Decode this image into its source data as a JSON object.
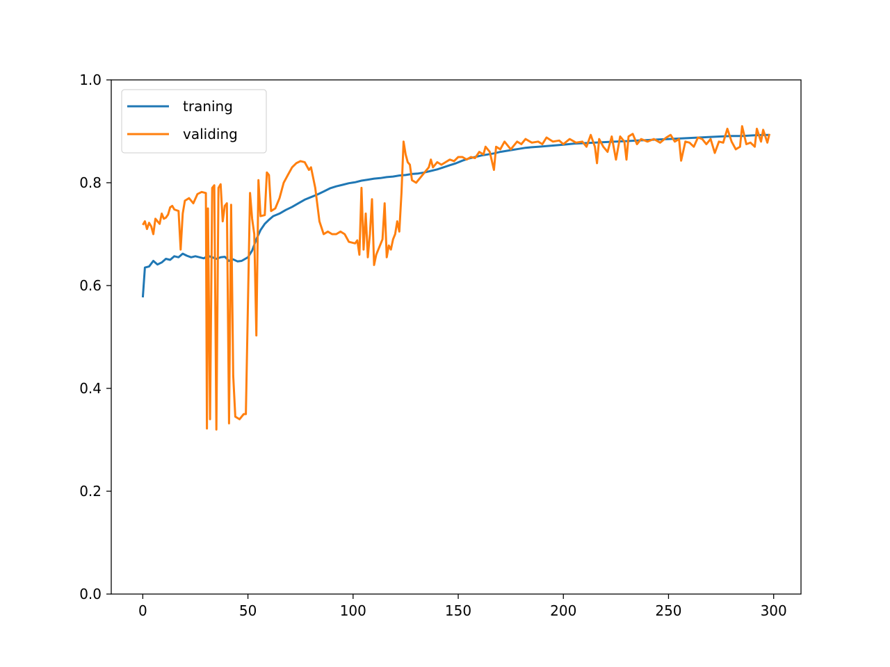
{
  "chart_data": {
    "type": "line",
    "title": "",
    "xlabel": "",
    "ylabel": "",
    "xlim": [
      -15,
      313
    ],
    "ylim": [
      0.0,
      1.0
    ],
    "x_ticks": [
      0,
      50,
      100,
      150,
      200,
      250,
      300
    ],
    "x_tick_labels": [
      "0",
      "50",
      "100",
      "150",
      "200",
      "250",
      "300"
    ],
    "y_ticks": [
      0.0,
      0.2,
      0.4,
      0.6,
      0.8,
      1.0
    ],
    "y_tick_labels": [
      "0.0",
      "0.2",
      "0.4",
      "0.6",
      "0.8",
      "1.0"
    ],
    "grid": false,
    "legend_position": "upper-left",
    "series": [
      {
        "name": "traning",
        "color": "#1f77b4",
        "points": [
          [
            0,
            0.577
          ],
          [
            1,
            0.635
          ],
          [
            3,
            0.637
          ],
          [
            5,
            0.648
          ],
          [
            7,
            0.641
          ],
          [
            9,
            0.645
          ],
          [
            11,
            0.652
          ],
          [
            13,
            0.65
          ],
          [
            15,
            0.657
          ],
          [
            17,
            0.655
          ],
          [
            19,
            0.662
          ],
          [
            21,
            0.658
          ],
          [
            23,
            0.655
          ],
          [
            25,
            0.657
          ],
          [
            27,
            0.655
          ],
          [
            29,
            0.653
          ],
          [
            31,
            0.658
          ],
          [
            33,
            0.655
          ],
          [
            35,
            0.652
          ],
          [
            37,
            0.655
          ],
          [
            39,
            0.656
          ],
          [
            41,
            0.648
          ],
          [
            43,
            0.651
          ],
          [
            45,
            0.647
          ],
          [
            47,
            0.648
          ],
          [
            50,
            0.655
          ],
          [
            52,
            0.668
          ],
          [
            54,
            0.69
          ],
          [
            56,
            0.708
          ],
          [
            58,
            0.72
          ],
          [
            60,
            0.728
          ],
          [
            62,
            0.735
          ],
          [
            65,
            0.74
          ],
          [
            68,
            0.747
          ],
          [
            71,
            0.753
          ],
          [
            74,
            0.76
          ],
          [
            77,
            0.767
          ],
          [
            80,
            0.772
          ],
          [
            83,
            0.777
          ],
          [
            86,
            0.783
          ],
          [
            89,
            0.789
          ],
          [
            92,
            0.793
          ],
          [
            95,
            0.796
          ],
          [
            98,
            0.799
          ],
          [
            101,
            0.801
          ],
          [
            104,
            0.804
          ],
          [
            107,
            0.806
          ],
          [
            110,
            0.808
          ],
          [
            113,
            0.809
          ],
          [
            116,
            0.811
          ],
          [
            119,
            0.812
          ],
          [
            122,
            0.814
          ],
          [
            125,
            0.815
          ],
          [
            128,
            0.817
          ],
          [
            131,
            0.818
          ],
          [
            134,
            0.82
          ],
          [
            137,
            0.823
          ],
          [
            140,
            0.826
          ],
          [
            143,
            0.83
          ],
          [
            146,
            0.834
          ],
          [
            149,
            0.838
          ],
          [
            152,
            0.843
          ],
          [
            155,
            0.847
          ],
          [
            158,
            0.85
          ],
          [
            161,
            0.853
          ],
          [
            164,
            0.855
          ],
          [
            167,
            0.857
          ],
          [
            170,
            0.86
          ],
          [
            173,
            0.862
          ],
          [
            176,
            0.864
          ],
          [
            179,
            0.866
          ],
          [
            182,
            0.868
          ],
          [
            185,
            0.869
          ],
          [
            188,
            0.87
          ],
          [
            191,
            0.871
          ],
          [
            194,
            0.872
          ],
          [
            197,
            0.873
          ],
          [
            200,
            0.874
          ],
          [
            205,
            0.876
          ],
          [
            210,
            0.877
          ],
          [
            215,
            0.878
          ],
          [
            220,
            0.879
          ],
          [
            225,
            0.88
          ],
          [
            230,
            0.881
          ],
          [
            235,
            0.882
          ],
          [
            240,
            0.883
          ],
          [
            245,
            0.884
          ],
          [
            250,
            0.885
          ],
          [
            255,
            0.886
          ],
          [
            260,
            0.887
          ],
          [
            265,
            0.888
          ],
          [
            270,
            0.889
          ],
          [
            275,
            0.89
          ],
          [
            280,
            0.891
          ],
          [
            285,
            0.891
          ],
          [
            290,
            0.892
          ],
          [
            295,
            0.893
          ],
          [
            298,
            0.893
          ]
        ]
      },
      {
        "name": "validing",
        "color": "#ff7f0e",
        "points": [
          [
            0,
            0.718
          ],
          [
            1,
            0.725
          ],
          [
            2,
            0.71
          ],
          [
            3,
            0.722
          ],
          [
            4,
            0.715
          ],
          [
            5,
            0.7
          ],
          [
            6,
            0.73
          ],
          [
            7,
            0.725
          ],
          [
            8,
            0.72
          ],
          [
            9,
            0.74
          ],
          [
            10,
            0.73
          ],
          [
            11,
            0.732
          ],
          [
            12,
            0.738
          ],
          [
            13,
            0.752
          ],
          [
            14,
            0.755
          ],
          [
            15,
            0.748
          ],
          [
            17,
            0.745
          ],
          [
            18,
            0.67
          ],
          [
            19,
            0.74
          ],
          [
            20,
            0.765
          ],
          [
            22,
            0.77
          ],
          [
            24,
            0.76
          ],
          [
            26,
            0.778
          ],
          [
            28,
            0.782
          ],
          [
            30,
            0.78
          ],
          [
            30.5,
            0.322
          ],
          [
            31,
            0.75
          ],
          [
            32,
            0.34
          ],
          [
            33,
            0.79
          ],
          [
            34,
            0.795
          ],
          [
            35,
            0.32
          ],
          [
            36,
            0.79
          ],
          [
            37,
            0.797
          ],
          [
            38,
            0.725
          ],
          [
            39,
            0.755
          ],
          [
            40,
            0.76
          ],
          [
            41,
            0.332
          ],
          [
            42,
            0.757
          ],
          [
            43,
            0.425
          ],
          [
            44,
            0.345
          ],
          [
            46,
            0.34
          ],
          [
            48,
            0.35
          ],
          [
            49,
            0.35
          ],
          [
            51,
            0.78
          ],
          [
            52,
            0.73
          ],
          [
            53,
            0.7
          ],
          [
            54,
            0.503
          ],
          [
            55,
            0.805
          ],
          [
            56,
            0.735
          ],
          [
            58,
            0.737
          ],
          [
            59,
            0.82
          ],
          [
            60,
            0.815
          ],
          [
            61,
            0.745
          ],
          [
            63,
            0.75
          ],
          [
            65,
            0.77
          ],
          [
            67,
            0.8
          ],
          [
            69,
            0.815
          ],
          [
            71,
            0.83
          ],
          [
            73,
            0.838
          ],
          [
            75,
            0.842
          ],
          [
            77,
            0.84
          ],
          [
            79,
            0.825
          ],
          [
            80,
            0.83
          ],
          [
            82,
            0.79
          ],
          [
            84,
            0.725
          ],
          [
            86,
            0.7
          ],
          [
            88,
            0.705
          ],
          [
            90,
            0.7
          ],
          [
            92,
            0.7
          ],
          [
            94,
            0.705
          ],
          [
            96,
            0.7
          ],
          [
            98,
            0.685
          ],
          [
            101,
            0.682
          ],
          [
            102,
            0.688
          ],
          [
            103,
            0.66
          ],
          [
            104,
            0.79
          ],
          [
            105,
            0.67
          ],
          [
            106,
            0.74
          ],
          [
            107,
            0.655
          ],
          [
            108,
            0.7
          ],
          [
            109,
            0.768
          ],
          [
            110,
            0.64
          ],
          [
            111,
            0.66
          ],
          [
            112,
            0.67
          ],
          [
            114,
            0.69
          ],
          [
            115,
            0.76
          ],
          [
            116,
            0.655
          ],
          [
            117,
            0.678
          ],
          [
            118,
            0.67
          ],
          [
            119,
            0.69
          ],
          [
            120,
            0.7
          ],
          [
            121,
            0.725
          ],
          [
            122,
            0.705
          ],
          [
            123,
            0.78
          ],
          [
            124,
            0.88
          ],
          [
            125,
            0.855
          ],
          [
            126,
            0.84
          ],
          [
            127,
            0.835
          ],
          [
            128,
            0.805
          ],
          [
            130,
            0.8
          ],
          [
            132,
            0.81
          ],
          [
            134,
            0.82
          ],
          [
            136,
            0.83
          ],
          [
            137,
            0.845
          ],
          [
            138,
            0.83
          ],
          [
            140,
            0.84
          ],
          [
            142,
            0.835
          ],
          [
            144,
            0.84
          ],
          [
            146,
            0.845
          ],
          [
            148,
            0.842
          ],
          [
            150,
            0.85
          ],
          [
            152,
            0.85
          ],
          [
            154,
            0.845
          ],
          [
            156,
            0.85
          ],
          [
            158,
            0.848
          ],
          [
            160,
            0.86
          ],
          [
            162,
            0.855
          ],
          [
            163,
            0.87
          ],
          [
            165,
            0.86
          ],
          [
            167,
            0.825
          ],
          [
            168,
            0.87
          ],
          [
            170,
            0.865
          ],
          [
            172,
            0.88
          ],
          [
            175,
            0.865
          ],
          [
            178,
            0.88
          ],
          [
            180,
            0.875
          ],
          [
            182,
            0.885
          ],
          [
            185,
            0.878
          ],
          [
            188,
            0.88
          ],
          [
            190,
            0.875
          ],
          [
            192,
            0.888
          ],
          [
            195,
            0.88
          ],
          [
            198,
            0.882
          ],
          [
            200,
            0.875
          ],
          [
            203,
            0.885
          ],
          [
            206,
            0.878
          ],
          [
            209,
            0.88
          ],
          [
            211,
            0.87
          ],
          [
            213,
            0.893
          ],
          [
            215,
            0.87
          ],
          [
            216,
            0.838
          ],
          [
            217,
            0.885
          ],
          [
            219,
            0.87
          ],
          [
            221,
            0.86
          ],
          [
            223,
            0.89
          ],
          [
            225,
            0.845
          ],
          [
            227,
            0.89
          ],
          [
            229,
            0.88
          ],
          [
            230,
            0.845
          ],
          [
            231,
            0.89
          ],
          [
            233,
            0.895
          ],
          [
            235,
            0.875
          ],
          [
            237,
            0.885
          ],
          [
            240,
            0.88
          ],
          [
            243,
            0.885
          ],
          [
            246,
            0.878
          ],
          [
            249,
            0.888
          ],
          [
            251,
            0.893
          ],
          [
            253,
            0.88
          ],
          [
            255,
            0.885
          ],
          [
            256,
            0.843
          ],
          [
            258,
            0.88
          ],
          [
            260,
            0.878
          ],
          [
            262,
            0.87
          ],
          [
            264,
            0.888
          ],
          [
            266,
            0.885
          ],
          [
            268,
            0.875
          ],
          [
            270,
            0.885
          ],
          [
            272,
            0.858
          ],
          [
            274,
            0.88
          ],
          [
            276,
            0.878
          ],
          [
            278,
            0.905
          ],
          [
            280,
            0.88
          ],
          [
            282,
            0.865
          ],
          [
            284,
            0.87
          ],
          [
            285,
            0.91
          ],
          [
            287,
            0.875
          ],
          [
            289,
            0.878
          ],
          [
            291,
            0.87
          ],
          [
            292,
            0.905
          ],
          [
            294,
            0.88
          ],
          [
            295,
            0.903
          ],
          [
            297,
            0.878
          ],
          [
            298,
            0.895
          ]
        ]
      }
    ]
  }
}
